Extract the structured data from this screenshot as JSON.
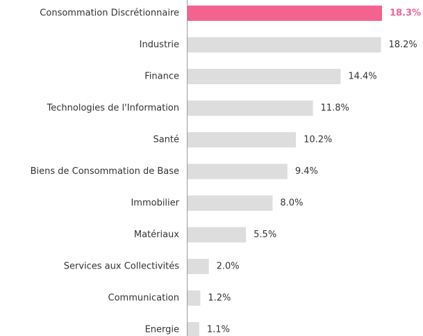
{
  "chart_data": {
    "type": "bar",
    "orientation": "horizontal",
    "categories": [
      "Consommation Discrétionnaire",
      "Industrie",
      "Finance",
      "Technologies de l'Information",
      "Santé",
      "Biens de Consommation de Base",
      "Immobilier",
      "Matériaux",
      "Services aux Collectivités",
      "Communication",
      "Energie"
    ],
    "values": [
      18.3,
      18.2,
      14.4,
      11.8,
      10.2,
      9.4,
      8.0,
      5.5,
      2.0,
      1.2,
      1.1
    ],
    "value_labels": [
      "18.3%",
      "18.2%",
      "14.4%",
      "11.8%",
      "10.2%",
      "9.4%",
      "8.0%",
      "5.5%",
      "2.0%",
      "1.2%",
      "1.1%"
    ],
    "color": "#dddddd",
    "highlight_category": "Consommation Discrétionnaire",
    "highlight_color": "#f46290"
  }
}
